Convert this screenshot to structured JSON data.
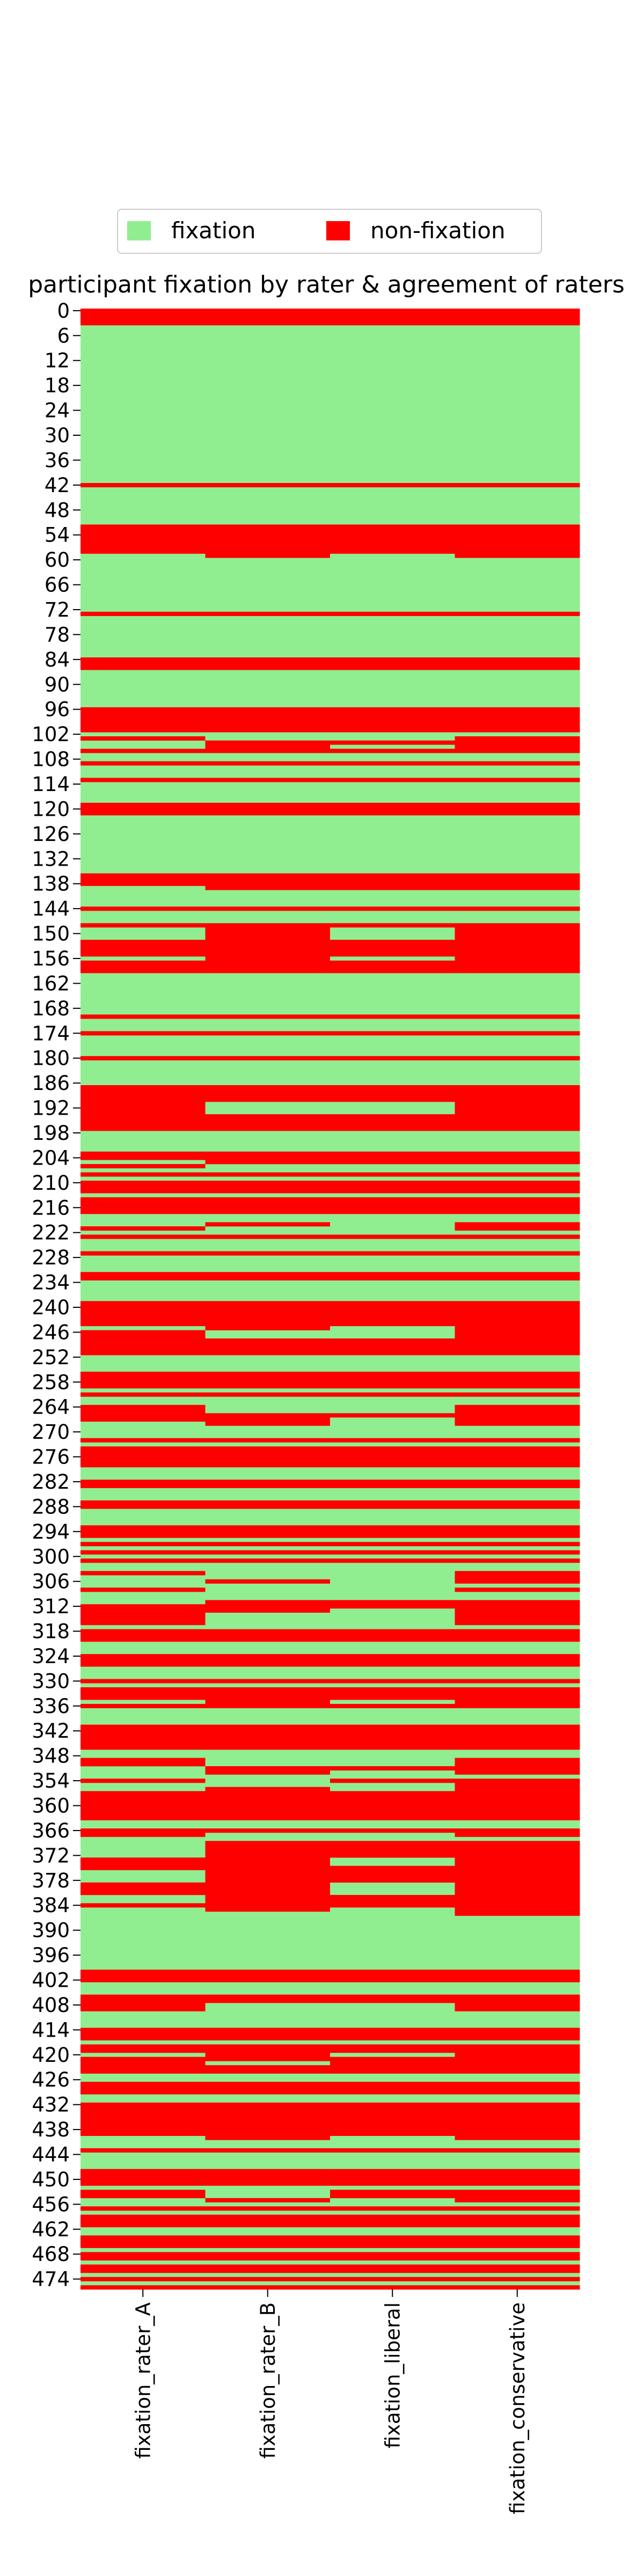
{
  "colors": {
    "fixation": "#90ee90",
    "non_fixation": "#ff0000",
    "axis": "#000000",
    "legend_border": "#cccccc"
  },
  "chart_data": {
    "type": "heatmap",
    "title": "participant fixation by rater & agreement of raters",
    "legend": {
      "placement": "top-center",
      "entries": [
        {
          "label": "fixation",
          "value": 1
        },
        {
          "label": "non-fixation",
          "value": 0
        }
      ]
    },
    "columns": [
      "fixation_rater_A",
      "fixation_rater_B",
      "fixation_liberal",
      "fixation_conservative"
    ],
    "row_count": 477,
    "y_tick_labels": [
      "0",
      "6",
      "12",
      "18",
      "24",
      "30",
      "36",
      "42",
      "48",
      "54",
      "60",
      "66",
      "72",
      "78",
      "84",
      "90",
      "96",
      "102",
      "108",
      "114",
      "120",
      "126",
      "132",
      "138",
      "144",
      "150",
      "156",
      "162",
      "168",
      "174",
      "180",
      "186",
      "192",
      "198",
      "204",
      "210",
      "216",
      "222",
      "228",
      "234",
      "240",
      "246",
      "252",
      "258",
      "264",
      "270",
      "276",
      "282",
      "288",
      "294",
      "300",
      "306",
      "312",
      "318",
      "324",
      "330",
      "336",
      "342",
      "348",
      "354",
      "360",
      "366",
      "372",
      "378",
      "384",
      "390",
      "396",
      "402",
      "408",
      "414",
      "420",
      "426",
      "432",
      "438",
      "444",
      "450",
      "456",
      "462",
      "468",
      "474"
    ],
    "note": "Cell segments per column: [start_row, end_row, value] with 1 = fixation (green), 0 = non-fixation (red). Default value is 1 (fixation).",
    "segments": [
      [
        [
          0,
          3,
          0
        ],
        [
          42,
          42,
          0
        ],
        [
          52,
          58,
          0
        ],
        [
          73,
          73,
          0
        ],
        [
          84,
          86,
          0
        ],
        [
          96,
          101,
          0
        ],
        [
          103,
          103,
          0
        ],
        [
          106,
          106,
          0
        ],
        [
          109,
          109,
          0
        ],
        [
          113,
          113,
          0
        ],
        [
          119,
          121,
          0
        ],
        [
          136,
          138,
          0
        ],
        [
          144,
          144,
          0
        ],
        [
          148,
          148,
          0
        ],
        [
          152,
          155,
          0
        ],
        [
          157,
          159,
          0
        ],
        [
          170,
          170,
          0
        ],
        [
          174,
          174,
          0
        ],
        [
          180,
          180,
          0
        ],
        [
          187,
          197,
          0
        ],
        [
          203,
          204,
          0
        ],
        [
          206,
          206,
          0
        ],
        [
          208,
          208,
          0
        ],
        [
          210,
          212,
          0
        ],
        [
          214,
          217,
          0
        ],
        [
          221,
          221,
          0
        ],
        [
          223,
          223,
          0
        ],
        [
          227,
          227,
          0
        ],
        [
          232,
          233,
          0
        ],
        [
          239,
          244,
          0
        ],
        [
          246,
          251,
          0
        ],
        [
          256,
          259,
          0
        ],
        [
          261,
          261,
          0
        ],
        [
          264,
          267,
          0
        ],
        [
          272,
          272,
          0
        ],
        [
          274,
          278,
          0
        ],
        [
          282,
          283,
          0
        ],
        [
          287,
          288,
          0
        ],
        [
          293,
          295,
          0
        ],
        [
          297,
          297,
          0
        ],
        [
          299,
          299,
          0
        ],
        [
          301,
          301,
          0
        ],
        [
          304,
          304,
          0
        ],
        [
          308,
          308,
          0
        ],
        [
          312,
          316,
          0
        ],
        [
          318,
          320,
          0
        ],
        [
          324,
          326,
          0
        ],
        [
          330,
          330,
          0
        ],
        [
          332,
          334,
          0
        ],
        [
          336,
          336,
          0
        ],
        [
          341,
          346,
          0
        ],
        [
          349,
          350,
          0
        ],
        [
          354,
          354,
          0
        ],
        [
          357,
          363,
          0
        ],
        [
          366,
          367,
          0
        ],
        [
          373,
          375,
          0
        ],
        [
          379,
          381,
          0
        ],
        [
          384,
          384,
          0
        ],
        [
          400,
          402,
          0
        ],
        [
          406,
          409,
          0
        ],
        [
          414,
          416,
          0
        ],
        [
          418,
          419,
          0
        ],
        [
          421,
          424,
          0
        ],
        [
          427,
          429,
          0
        ],
        [
          432,
          439,
          0
        ],
        [
          443,
          443,
          0
        ],
        [
          448,
          451,
          0
        ],
        [
          453,
          454,
          0
        ],
        [
          457,
          457,
          0
        ],
        [
          459,
          461,
          0
        ],
        [
          464,
          466,
          0
        ],
        [
          468,
          469,
          0
        ],
        [
          471,
          472,
          0
        ],
        [
          474,
          474,
          0
        ],
        [
          476,
          476,
          0
        ]
      ],
      [
        [
          0,
          3,
          0
        ],
        [
          42,
          42,
          0
        ],
        [
          52,
          59,
          0
        ],
        [
          73,
          73,
          0
        ],
        [
          84,
          86,
          0
        ],
        [
          96,
          101,
          0
        ],
        [
          104,
          106,
          0
        ],
        [
          109,
          109,
          0
        ],
        [
          113,
          113,
          0
        ],
        [
          119,
          121,
          0
        ],
        [
          136,
          139,
          0
        ],
        [
          144,
          144,
          0
        ],
        [
          148,
          159,
          0
        ],
        [
          170,
          170,
          0
        ],
        [
          174,
          174,
          0
        ],
        [
          180,
          180,
          0
        ],
        [
          187,
          190,
          0
        ],
        [
          194,
          197,
          0
        ],
        [
          203,
          205,
          0
        ],
        [
          208,
          208,
          0
        ],
        [
          210,
          212,
          0
        ],
        [
          214,
          217,
          0
        ],
        [
          220,
          220,
          0
        ],
        [
          223,
          223,
          0
        ],
        [
          227,
          227,
          0
        ],
        [
          232,
          233,
          0
        ],
        [
          239,
          245,
          0
        ],
        [
          248,
          251,
          0
        ],
        [
          256,
          259,
          0
        ],
        [
          261,
          261,
          0
        ],
        [
          266,
          268,
          0
        ],
        [
          272,
          272,
          0
        ],
        [
          274,
          278,
          0
        ],
        [
          282,
          283,
          0
        ],
        [
          287,
          288,
          0
        ],
        [
          293,
          295,
          0
        ],
        [
          297,
          297,
          0
        ],
        [
          299,
          299,
          0
        ],
        [
          301,
          301,
          0
        ],
        [
          306,
          306,
          0
        ],
        [
          311,
          313,
          0
        ],
        [
          318,
          320,
          0
        ],
        [
          324,
          326,
          0
        ],
        [
          330,
          330,
          0
        ],
        [
          332,
          336,
          0
        ],
        [
          341,
          346,
          0
        ],
        [
          351,
          352,
          0
        ],
        [
          356,
          356,
          0
        ],
        [
          357,
          363,
          0
        ],
        [
          366,
          366,
          0
        ],
        [
          369,
          385,
          0
        ],
        [
          400,
          402,
          0
        ],
        [
          406,
          407,
          0
        ],
        [
          414,
          416,
          0
        ],
        [
          418,
          421,
          0
        ],
        [
          423,
          424,
          0
        ],
        [
          427,
          429,
          0
        ],
        [
          432,
          440,
          0
        ],
        [
          443,
          443,
          0
        ],
        [
          448,
          451,
          0
        ],
        [
          455,
          455,
          0
        ],
        [
          457,
          457,
          0
        ],
        [
          459,
          461,
          0
        ],
        [
          464,
          466,
          0
        ],
        [
          468,
          469,
          0
        ],
        [
          471,
          472,
          0
        ],
        [
          474,
          474,
          0
        ],
        [
          476,
          476,
          0
        ]
      ],
      [
        [
          0,
          3,
          0
        ],
        [
          42,
          42,
          0
        ],
        [
          52,
          58,
          0
        ],
        [
          73,
          73,
          0
        ],
        [
          84,
          86,
          0
        ],
        [
          96,
          101,
          0
        ],
        [
          104,
          104,
          0
        ],
        [
          106,
          106,
          0
        ],
        [
          109,
          109,
          0
        ],
        [
          113,
          113,
          0
        ],
        [
          119,
          121,
          0
        ],
        [
          136,
          139,
          0
        ],
        [
          144,
          144,
          0
        ],
        [
          148,
          148,
          0
        ],
        [
          152,
          155,
          0
        ],
        [
          157,
          159,
          0
        ],
        [
          170,
          170,
          0
        ],
        [
          174,
          174,
          0
        ],
        [
          180,
          180,
          0
        ],
        [
          187,
          190,
          0
        ],
        [
          194,
          197,
          0
        ],
        [
          203,
          205,
          0
        ],
        [
          208,
          208,
          0
        ],
        [
          210,
          212,
          0
        ],
        [
          214,
          217,
          0
        ],
        [
          223,
          223,
          0
        ],
        [
          227,
          227,
          0
        ],
        [
          232,
          233,
          0
        ],
        [
          239,
          244,
          0
        ],
        [
          248,
          251,
          0
        ],
        [
          256,
          259,
          0
        ],
        [
          261,
          261,
          0
        ],
        [
          266,
          266,
          0
        ],
        [
          272,
          272,
          0
        ],
        [
          274,
          278,
          0
        ],
        [
          282,
          283,
          0
        ],
        [
          287,
          288,
          0
        ],
        [
          293,
          295,
          0
        ],
        [
          297,
          297,
          0
        ],
        [
          299,
          299,
          0
        ],
        [
          301,
          301,
          0
        ],
        [
          311,
          312,
          0
        ],
        [
          318,
          320,
          0
        ],
        [
          324,
          326,
          0
        ],
        [
          330,
          330,
          0
        ],
        [
          332,
          334,
          0
        ],
        [
          336,
          336,
          0
        ],
        [
          341,
          346,
          0
        ],
        [
          351,
          351,
          0
        ],
        [
          354,
          354,
          0
        ],
        [
          357,
          363,
          0
        ],
        [
          366,
          366,
          0
        ],
        [
          369,
          372,
          0
        ],
        [
          375,
          378,
          0
        ],
        [
          382,
          384,
          0
        ],
        [
          400,
          402,
          0
        ],
        [
          406,
          407,
          0
        ],
        [
          414,
          416,
          0
        ],
        [
          418,
          419,
          0
        ],
        [
          421,
          424,
          0
        ],
        [
          427,
          429,
          0
        ],
        [
          432,
          439,
          0
        ],
        [
          443,
          443,
          0
        ],
        [
          448,
          451,
          0
        ],
        [
          453,
          454,
          0
        ],
        [
          457,
          457,
          0
        ],
        [
          459,
          461,
          0
        ],
        [
          464,
          466,
          0
        ],
        [
          468,
          469,
          0
        ],
        [
          471,
          472,
          0
        ],
        [
          474,
          474,
          0
        ],
        [
          476,
          476,
          0
        ]
      ],
      [
        [
          0,
          3,
          0
        ],
        [
          42,
          42,
          0
        ],
        [
          52,
          59,
          0
        ],
        [
          73,
          73,
          0
        ],
        [
          84,
          86,
          0
        ],
        [
          96,
          101,
          0
        ],
        [
          103,
          106,
          0
        ],
        [
          109,
          109,
          0
        ],
        [
          113,
          113,
          0
        ],
        [
          119,
          121,
          0
        ],
        [
          136,
          139,
          0
        ],
        [
          144,
          144,
          0
        ],
        [
          148,
          159,
          0
        ],
        [
          170,
          170,
          0
        ],
        [
          174,
          174,
          0
        ],
        [
          180,
          180,
          0
        ],
        [
          187,
          197,
          0
        ],
        [
          203,
          205,
          0
        ],
        [
          208,
          208,
          0
        ],
        [
          210,
          212,
          0
        ],
        [
          214,
          217,
          0
        ],
        [
          220,
          221,
          0
        ],
        [
          223,
          223,
          0
        ],
        [
          227,
          227,
          0
        ],
        [
          232,
          233,
          0
        ],
        [
          239,
          245,
          0
        ],
        [
          246,
          251,
          0
        ],
        [
          256,
          259,
          0
        ],
        [
          261,
          261,
          0
        ],
        [
          264,
          268,
          0
        ],
        [
          272,
          272,
          0
        ],
        [
          274,
          278,
          0
        ],
        [
          282,
          283,
          0
        ],
        [
          287,
          288,
          0
        ],
        [
          293,
          295,
          0
        ],
        [
          297,
          297,
          0
        ],
        [
          299,
          299,
          0
        ],
        [
          301,
          301,
          0
        ],
        [
          304,
          306,
          0
        ],
        [
          308,
          308,
          0
        ],
        [
          311,
          316,
          0
        ],
        [
          318,
          320,
          0
        ],
        [
          324,
          326,
          0
        ],
        [
          330,
          330,
          0
        ],
        [
          332,
          336,
          0
        ],
        [
          341,
          346,
          0
        ],
        [
          349,
          352,
          0
        ],
        [
          354,
          356,
          0
        ],
        [
          357,
          363,
          0
        ],
        [
          366,
          367,
          0
        ],
        [
          369,
          386,
          0
        ],
        [
          400,
          402,
          0
        ],
        [
          406,
          409,
          0
        ],
        [
          414,
          416,
          0
        ],
        [
          418,
          421,
          0
        ],
        [
          422,
          424,
          0
        ],
        [
          427,
          429,
          0
        ],
        [
          432,
          440,
          0
        ],
        [
          443,
          443,
          0
        ],
        [
          448,
          451,
          0
        ],
        [
          453,
          455,
          0
        ],
        [
          457,
          457,
          0
        ],
        [
          459,
          461,
          0
        ],
        [
          464,
          466,
          0
        ],
        [
          468,
          469,
          0
        ],
        [
          471,
          472,
          0
        ],
        [
          474,
          474,
          0
        ],
        [
          476,
          476,
          0
        ]
      ]
    ]
  }
}
